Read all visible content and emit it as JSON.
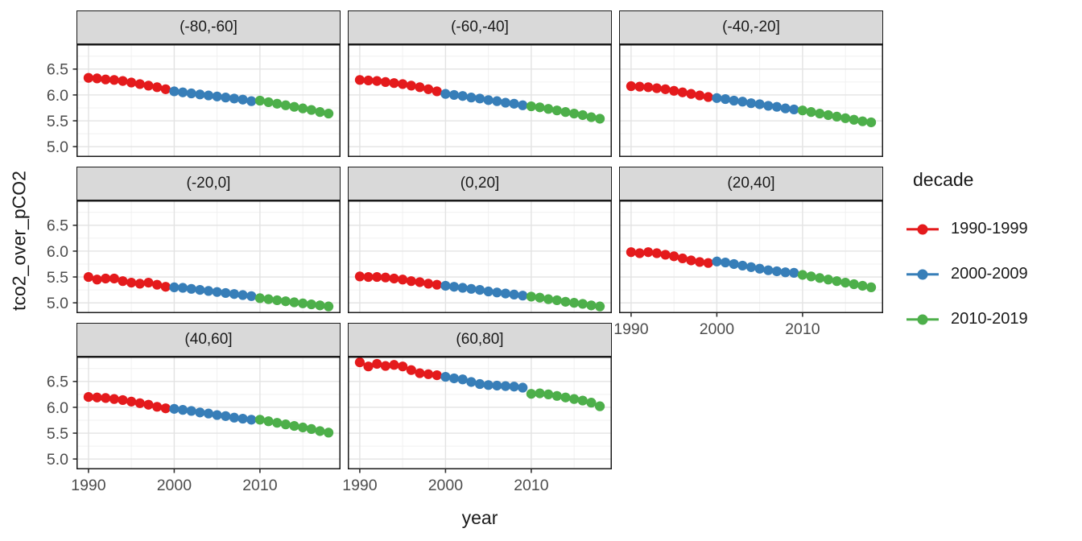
{
  "chart_data": {
    "type": "scatter",
    "xlabel": "year",
    "ylabel": "tco2_over_pCO2",
    "xlim": [
      1988.6,
      2019.4
    ],
    "ylim": [
      4.8,
      6.98
    ],
    "x_ticks": [
      1990,
      2000,
      2010
    ],
    "y_ticks": [
      5.0,
      5.5,
      6.0,
      6.5
    ],
    "x_minor": [
      1995,
      2005,
      2015
    ],
    "y_minor": [
      5.25,
      5.75,
      6.25,
      6.75
    ],
    "grid": true,
    "legend": {
      "title": "decade",
      "position": "right",
      "entries": [
        {
          "label": "1990-1999",
          "color": "#E41A1C"
        },
        {
          "label": "2000-2009",
          "color": "#377EB8"
        },
        {
          "label": "2010-2019",
          "color": "#4DAF4A"
        }
      ]
    },
    "years": {
      "1990-1999": [
        1990,
        1991,
        1992,
        1993,
        1994,
        1995,
        1996,
        1997,
        1998,
        1999
      ],
      "2000-2009": [
        2000,
        2001,
        2002,
        2003,
        2004,
        2005,
        2006,
        2007,
        2008,
        2009
      ],
      "2010-2019": [
        2010,
        2011,
        2012,
        2013,
        2014,
        2015,
        2016,
        2017,
        2018
      ]
    },
    "panels": [
      {
        "label": "(-80,-60]",
        "row": 1,
        "col": 1,
        "show_y": true,
        "show_x": false,
        "series": {
          "1990-1999": [
            6.33,
            6.32,
            6.3,
            6.29,
            6.27,
            6.24,
            6.21,
            6.18,
            6.15,
            6.11
          ],
          "2000-2009": [
            6.07,
            6.05,
            6.03,
            6.01,
            5.99,
            5.97,
            5.95,
            5.93,
            5.91,
            5.88
          ],
          "2010-2019": [
            5.89,
            5.86,
            5.83,
            5.8,
            5.77,
            5.74,
            5.71,
            5.67,
            5.64
          ]
        }
      },
      {
        "label": "(-60,-40]",
        "row": 1,
        "col": 2,
        "show_y": false,
        "show_x": false,
        "series": {
          "1990-1999": [
            6.29,
            6.28,
            6.27,
            6.25,
            6.23,
            6.21,
            6.18,
            6.15,
            6.11,
            6.07
          ],
          "2000-2009": [
            6.02,
            6.0,
            5.98,
            5.95,
            5.93,
            5.9,
            5.88,
            5.85,
            5.83,
            5.8
          ],
          "2010-2019": [
            5.78,
            5.76,
            5.73,
            5.7,
            5.67,
            5.64,
            5.61,
            5.57,
            5.54
          ]
        }
      },
      {
        "label": "(-40,-20]",
        "row": 1,
        "col": 3,
        "show_y": false,
        "show_x": false,
        "series": {
          "1990-1999": [
            6.17,
            6.16,
            6.15,
            6.13,
            6.11,
            6.08,
            6.05,
            6.02,
            5.99,
            5.96
          ],
          "2000-2009": [
            5.94,
            5.92,
            5.89,
            5.87,
            5.84,
            5.82,
            5.79,
            5.77,
            5.74,
            5.72
          ],
          "2010-2019": [
            5.7,
            5.67,
            5.64,
            5.61,
            5.58,
            5.55,
            5.52,
            5.49,
            5.47
          ]
        }
      },
      {
        "label": "(-20,0]",
        "row": 2,
        "col": 1,
        "show_y": true,
        "show_x": false,
        "series": {
          "1990-1999": [
            5.5,
            5.45,
            5.47,
            5.47,
            5.42,
            5.39,
            5.37,
            5.39,
            5.35,
            5.31
          ],
          "2000-2009": [
            5.3,
            5.29,
            5.27,
            5.25,
            5.23,
            5.21,
            5.19,
            5.17,
            5.15,
            5.13
          ],
          "2010-2019": [
            5.09,
            5.07,
            5.05,
            5.03,
            5.01,
            4.99,
            4.97,
            4.95,
            4.93
          ]
        }
      },
      {
        "label": "(0,20]",
        "row": 2,
        "col": 2,
        "show_y": false,
        "show_x": false,
        "series": {
          "1990-1999": [
            5.51,
            5.5,
            5.5,
            5.49,
            5.47,
            5.45,
            5.42,
            5.4,
            5.37,
            5.35
          ],
          "2000-2009": [
            5.33,
            5.31,
            5.29,
            5.27,
            5.25,
            5.22,
            5.2,
            5.18,
            5.16,
            5.14
          ],
          "2010-2019": [
            5.12,
            5.1,
            5.07,
            5.05,
            5.02,
            5.0,
            4.98,
            4.95,
            4.93
          ]
        }
      },
      {
        "label": "(20,40]",
        "row": 2,
        "col": 3,
        "show_y": false,
        "show_x": true,
        "series": {
          "1990-1999": [
            5.98,
            5.96,
            5.98,
            5.96,
            5.93,
            5.9,
            5.86,
            5.82,
            5.79,
            5.77
          ],
          "2000-2009": [
            5.8,
            5.78,
            5.75,
            5.72,
            5.69,
            5.66,
            5.63,
            5.61,
            5.59,
            5.58
          ],
          "2010-2019": [
            5.54,
            5.51,
            5.48,
            5.45,
            5.42,
            5.39,
            5.36,
            5.33,
            5.3
          ]
        }
      },
      {
        "label": "(40,60]",
        "row": 3,
        "col": 1,
        "show_y": true,
        "show_x": true,
        "series": {
          "1990-1999": [
            6.2,
            6.19,
            6.18,
            6.16,
            6.14,
            6.11,
            6.08,
            6.05,
            6.01,
            5.98
          ],
          "2000-2009": [
            5.97,
            5.95,
            5.93,
            5.9,
            5.88,
            5.85,
            5.83,
            5.8,
            5.78,
            5.76
          ],
          "2010-2019": [
            5.76,
            5.73,
            5.7,
            5.67,
            5.64,
            5.61,
            5.58,
            5.54,
            5.51
          ]
        }
      },
      {
        "label": "(60,80]",
        "row": 3,
        "col": 2,
        "show_y": false,
        "show_x": true,
        "series": {
          "1990-1999": [
            6.87,
            6.79,
            6.84,
            6.8,
            6.82,
            6.79,
            6.72,
            6.66,
            6.64,
            6.62
          ],
          "2000-2009": [
            6.59,
            6.56,
            6.54,
            6.49,
            6.45,
            6.43,
            6.42,
            6.41,
            6.4,
            6.38
          ],
          "2010-2019": [
            6.26,
            6.27,
            6.25,
            6.22,
            6.19,
            6.16,
            6.13,
            6.09,
            6.02
          ]
        }
      }
    ],
    "style": {
      "panel_bg": "#FFFFFF",
      "grid_major": "#E3E3E3",
      "grid_minor": "#F0F0F0",
      "panel_border": "#1A1A1A",
      "strip_bg": "#D9D9D9",
      "tick_label_color": "#4D4D4D",
      "tick_color": "#333333"
    }
  }
}
